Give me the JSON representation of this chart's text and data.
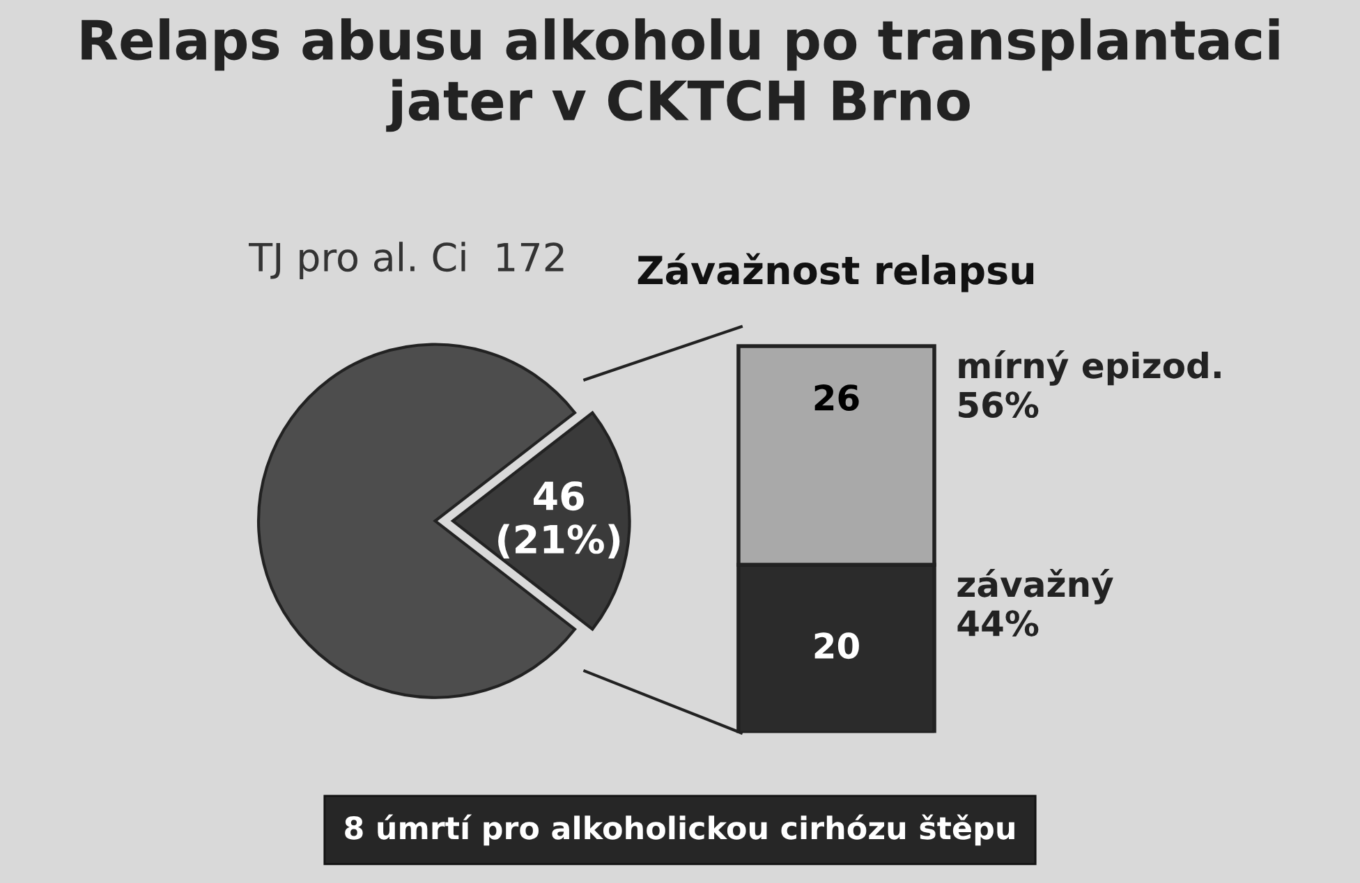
{
  "chart_data": [
    {
      "type": "pie",
      "title": "Relaps abusu alkoholu po transplantaci jater v CKTCH Brno",
      "subtitle": "TJ pro al. Ci  172",
      "categories": [
        null,
        null
      ],
      "values": [
        79,
        21
      ],
      "colors": [
        "#4d4d4d",
        "#3a3a3a"
      ],
      "value_labels": [
        null,
        "46\n(21%)"
      ],
      "annotations": [
        "8 úmrtí pro alkoholickou cirhózu štěpu"
      ]
    },
    {
      "type": "bar",
      "title": "Závažnost relapsu",
      "stacked": true,
      "tick_labels": false,
      "categories": [
        null
      ],
      "data_labels": true,
      "series": [
        {
          "name": "závažný\n44%",
          "color": "#2b2b2b",
          "values": [
            20
          ]
        },
        {
          "name": "mírný epizod.\n56%",
          "color": "#a9a9a9",
          "values": [
            26
          ]
        }
      ]
    }
  ]
}
